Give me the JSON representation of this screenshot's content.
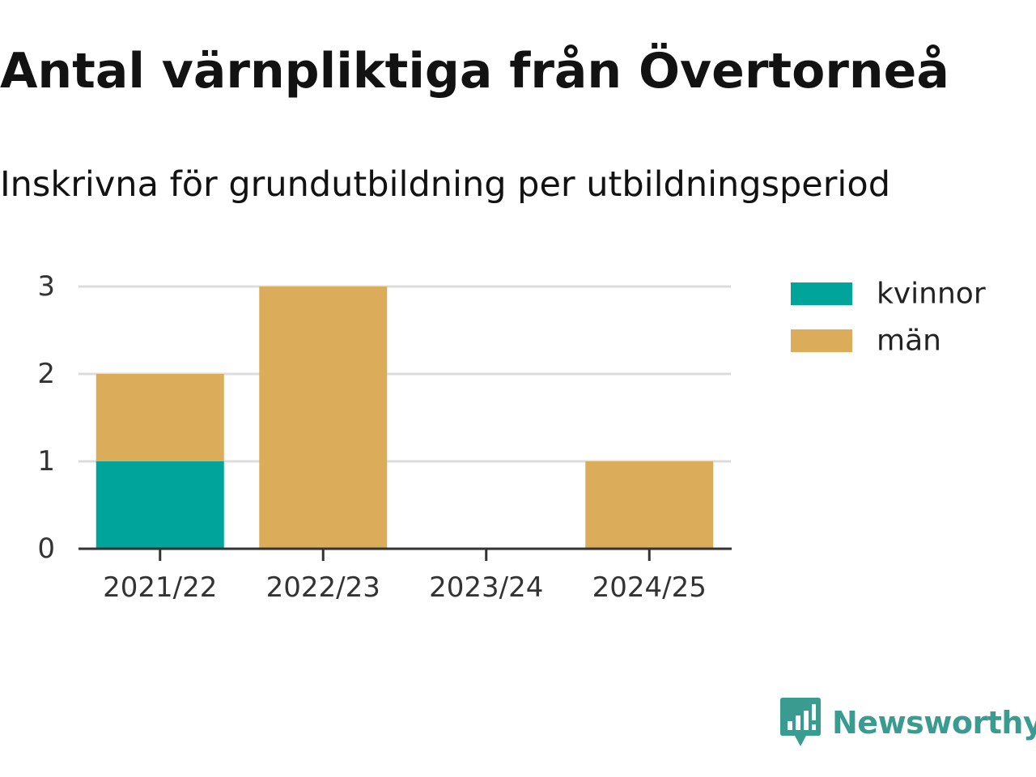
{
  "chart_data": {
    "type": "bar",
    "stacked": true,
    "title": "Antal värnpliktiga från Övertorneå",
    "subtitle": "Inskrivna för grundutbildning per utbildningsperiod",
    "xlabel": "",
    "ylabel": "",
    "categories": [
      "2021/22",
      "2022/23",
      "2023/24",
      "2024/25"
    ],
    "series": [
      {
        "name": "kvinnor",
        "color": "#00a49a",
        "values": [
          1,
          0,
          0,
          0
        ]
      },
      {
        "name": "män",
        "color": "#dbad5b",
        "values": [
          1,
          3,
          0,
          1
        ]
      }
    ],
    "ylim": [
      0,
      3
    ],
    "yticks": [
      "0",
      "1",
      "2",
      "3"
    ],
    "grid": true,
    "legend_position": "right"
  },
  "brand": {
    "name": "Newsworthy",
    "icon": "newsworthy-logo-icon",
    "color": "#3a9b91"
  }
}
